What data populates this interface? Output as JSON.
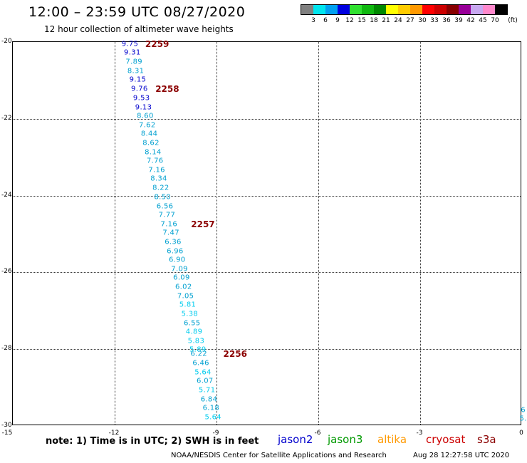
{
  "title": "12:00 – 23:59 UTC 08/27/2020",
  "subtitle": "12 hour collection of altimeter wave heights",
  "color_scale": {
    "colors": [
      "#808080",
      "#00e5ee",
      "#00a0f0",
      "#0000e0",
      "#30e030",
      "#10b810",
      "#008800",
      "#ffff00",
      "#ffcc00",
      "#ff9900",
      "#ff0000",
      "#cc0000",
      "#880000",
      "#990099",
      "#c8a8f0",
      "#ff88cc",
      "#000000"
    ],
    "labels": [
      "3",
      "6",
      "9",
      "12",
      "15",
      "18",
      "21",
      "24",
      "27",
      "30",
      "33",
      "36",
      "39",
      "42",
      "45",
      "70"
    ],
    "unit": "(ft)"
  },
  "chart_data": {
    "type": "scatter",
    "title": "12:00 – 23:59 UTC 08/27/2020",
    "subtitle": "12 hour collection of altimeter wave heights",
    "xlim": [
      -15,
      0
    ],
    "ylim": [
      -30,
      -20
    ],
    "x_ticks": [
      "-15",
      "-12",
      "-9",
      "-6",
      "-3",
      "0"
    ],
    "y_ticks": [
      "-20",
      "-22",
      "-24",
      "-26",
      "-28",
      "-30"
    ],
    "grid": true,
    "series": [
      {
        "name": "cryosat",
        "color": "#00bcd4",
        "points": [
          {
            "lon": -11.55,
            "lat": -20.05,
            "swh": "9.75",
            "color": "#0000cd"
          },
          {
            "lon": -11.48,
            "lat": -20.28,
            "swh": "9.31",
            "color": "#0000cd"
          },
          {
            "lon": -11.43,
            "lat": -20.52,
            "swh": "7.89",
            "color": "#00a0d0"
          },
          {
            "lon": -11.38,
            "lat": -20.76,
            "swh": "8.31",
            "color": "#00a0d0"
          },
          {
            "lon": -11.32,
            "lat": -20.99,
            "swh": "9.15",
            "color": "#0000cd"
          },
          {
            "lon": -11.27,
            "lat": -21.22,
            "swh": "9.76",
            "color": "#0000cd"
          },
          {
            "lon": -11.21,
            "lat": -21.46,
            "swh": "9.53",
            "color": "#0000cd"
          },
          {
            "lon": -11.15,
            "lat": -21.7,
            "swh": "9.13",
            "color": "#0000cd"
          },
          {
            "lon": -11.1,
            "lat": -21.93,
            "swh": "8.60",
            "color": "#00a0d0"
          },
          {
            "lon": -11.04,
            "lat": -22.17,
            "swh": "7.62",
            "color": "#00a0d0"
          },
          {
            "lon": -10.98,
            "lat": -22.4,
            "swh": "8.44",
            "color": "#00a0d0"
          },
          {
            "lon": -10.93,
            "lat": -22.63,
            "swh": "8.62",
            "color": "#00a0d0"
          },
          {
            "lon": -10.87,
            "lat": -22.87,
            "swh": "8.14",
            "color": "#00a0d0"
          },
          {
            "lon": -10.81,
            "lat": -23.1,
            "swh": "7.76",
            "color": "#00a0d0"
          },
          {
            "lon": -10.76,
            "lat": -23.34,
            "swh": "7.16",
            "color": "#00a0d0"
          },
          {
            "lon": -10.7,
            "lat": -23.57,
            "swh": "8.34",
            "color": "#00a0d0"
          },
          {
            "lon": -10.64,
            "lat": -23.8,
            "swh": "8.22",
            "color": "#00a0d0"
          },
          {
            "lon": -10.59,
            "lat": -24.04,
            "swh": "8.50",
            "color": "#00a0d0"
          },
          {
            "lon": -10.52,
            "lat": -24.28,
            "swh": "6.56",
            "color": "#00a0d0"
          },
          {
            "lon": -10.46,
            "lat": -24.51,
            "swh": "7.77",
            "color": "#00a0d0"
          },
          {
            "lon": -10.4,
            "lat": -24.75,
            "swh": "7.16",
            "color": "#00a0d0"
          },
          {
            "lon": -10.34,
            "lat": -24.98,
            "swh": "7.47",
            "color": "#00a0d0"
          },
          {
            "lon": -10.28,
            "lat": -25.22,
            "swh": "6.36",
            "color": "#00a0d0"
          },
          {
            "lon": -10.22,
            "lat": -25.45,
            "swh": "6.96",
            "color": "#00a0d0"
          },
          {
            "lon": -10.16,
            "lat": -25.68,
            "swh": "6.90",
            "color": "#00a0d0"
          },
          {
            "lon": -10.09,
            "lat": -25.92,
            "swh": "7.09",
            "color": "#00a0d0"
          },
          {
            "lon": -10.03,
            "lat": -26.15,
            "swh": "6.09",
            "color": "#00a0d0"
          },
          {
            "lon": -9.97,
            "lat": -26.39,
            "swh": "6.02",
            "color": "#00a0d0"
          },
          {
            "lon": -9.91,
            "lat": -26.62,
            "swh": "7.05",
            "color": "#00a0d0"
          },
          {
            "lon": -9.85,
            "lat": -26.85,
            "swh": "5.81",
            "color": "#00ccee"
          },
          {
            "lon": -9.79,
            "lat": -27.09,
            "swh": "5.38",
            "color": "#00ccee"
          },
          {
            "lon": -9.72,
            "lat": -27.32,
            "swh": "6.55",
            "color": "#00a0d0"
          },
          {
            "lon": -9.66,
            "lat": -27.56,
            "swh": "4.89",
            "color": "#00ccee"
          },
          {
            "lon": -9.6,
            "lat": -27.79,
            "swh": "5.83",
            "color": "#00ccee"
          },
          {
            "lon": -9.55,
            "lat": -28.02,
            "swh": "5.89",
            "color": "#00ccee"
          },
          {
            "lon": -9.52,
            "lat": -28.13,
            "swh": "6.22",
            "color": "#00a0d0"
          },
          {
            "lon": -9.46,
            "lat": -28.37,
            "swh": "6.46",
            "color": "#00a0d0"
          },
          {
            "lon": -9.4,
            "lat": -28.61,
            "swh": "5.64",
            "color": "#00ccee"
          },
          {
            "lon": -9.34,
            "lat": -28.84,
            "swh": "6.07",
            "color": "#00a0d0"
          },
          {
            "lon": -9.28,
            "lat": -29.07,
            "swh": "5.71",
            "color": "#00ccee"
          },
          {
            "lon": -9.22,
            "lat": -29.31,
            "swh": "6.84",
            "color": "#00a0d0"
          },
          {
            "lon": -9.16,
            "lat": -29.54,
            "swh": "6.18",
            "color": "#00a0d0"
          },
          {
            "lon": -9.1,
            "lat": -29.78,
            "swh": "5.64",
            "color": "#00ccee"
          }
        ]
      }
    ],
    "pass_labels": [
      {
        "text": "2259",
        "lon": -11.1,
        "lat": -20.05
      },
      {
        "text": "2258",
        "lon": -10.8,
        "lat": -21.22
      },
      {
        "text": "2257",
        "lon": -9.75,
        "lat": -24.75
      },
      {
        "text": "2256",
        "lon": -8.8,
        "lat": -28.13
      }
    ],
    "edge_points": [
      {
        "text": "6",
        "lon": -0.05,
        "lat": -29.6
      },
      {
        "text": "5.",
        "lon": -0.05,
        "lat": -29.82
      }
    ]
  },
  "note": "note:  1) Time is in UTC;  2) SWH is in feet",
  "legend": [
    {
      "name": "jason2",
      "color": "#0000cd"
    },
    {
      "name": "jason3",
      "color": "#009900"
    },
    {
      "name": "altika",
      "color": "#ff9900"
    },
    {
      "name": "cryosat",
      "color": "#cc0000"
    },
    {
      "name": "s3a",
      "color": "#8b0000"
    }
  ],
  "credit": "NOAA/NESDIS Center for Satellite Applications and Research",
  "timestamp": "Aug 28 12:27:58 UTC 2020"
}
